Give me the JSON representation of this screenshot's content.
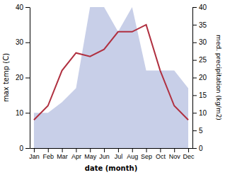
{
  "chart_data": {
    "type": "line",
    "categories": [
      "Jan",
      "Feb",
      "Mar",
      "Apr",
      "May",
      "Jun",
      "Jul",
      "Aug",
      "Sep",
      "Oct",
      "Nov",
      "Dec"
    ],
    "x_label": "date (month)",
    "y_label": "max temp (C)",
    "y2_label": "med. precipitation (kg/m2)",
    "series": [
      {
        "type": "area",
        "axis": "y2",
        "color": "#c8cfe8",
        "values": [
          10,
          10,
          13,
          17,
          40,
          40,
          33,
          40,
          22,
          22,
          22,
          17
        ]
      },
      {
        "type": "line",
        "color": "#b03040",
        "values": [
          8,
          12,
          22,
          27,
          26,
          28,
          33,
          33,
          35,
          22,
          12,
          8
        ]
      }
    ],
    "ylim": [
      0,
      40
    ],
    "yticks": [
      0,
      10,
      20,
      30,
      40
    ],
    "y2lim": [
      0,
      40
    ],
    "y2ticks": [
      0,
      5,
      10,
      15,
      20,
      25,
      30,
      35,
      40
    ]
  }
}
